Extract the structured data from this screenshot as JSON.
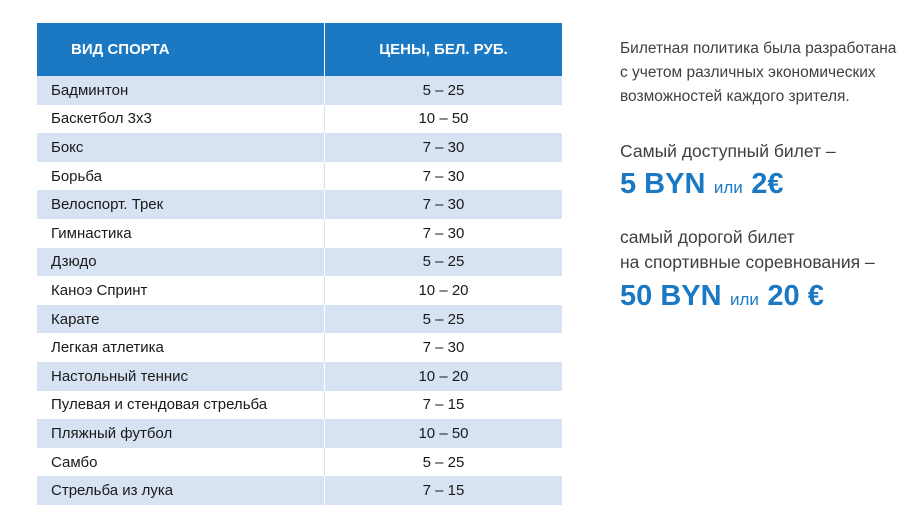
{
  "table": {
    "headers": {
      "sport": "ВИД СПОРТА",
      "price": "ЦЕНЫ, БЕЛ. РУБ."
    },
    "rows": [
      {
        "sport": "Бадминтон",
        "price": "5 – 25"
      },
      {
        "sport": "Баскетбол 3x3",
        "price": "10 – 50"
      },
      {
        "sport": "Бокс",
        "price": "7 – 30"
      },
      {
        "sport": "Борьба",
        "price": "7 – 30"
      },
      {
        "sport": "Велоспорт. Трек",
        "price": "7 – 30"
      },
      {
        "sport": "Гимнастика",
        "price": "7 – 30"
      },
      {
        "sport": "Дзюдо",
        "price": "5 – 25"
      },
      {
        "sport": "Каноэ Спринт",
        "price": "10 – 20"
      },
      {
        "sport": "Карате",
        "price": "5 – 25"
      },
      {
        "sport": "Легкая атлетика",
        "price": "7 – 30"
      },
      {
        "sport": "Настольный теннис",
        "price": "10 – 20"
      },
      {
        "sport": "Пулевая и стендовая стрельба",
        "price": "7 – 15"
      },
      {
        "sport": "Пляжный футбол",
        "price": "10 – 50"
      },
      {
        "sport": "Самбо",
        "price": "5 – 25"
      },
      {
        "sport": "Стрельба из лука",
        "price": "7 – 15"
      }
    ]
  },
  "info": {
    "policy": "Билетная политика была разработана\nс учетом различных экономических\nвозможностей каждого зрителя.",
    "cheapest_label": "Самый доступный билет –",
    "cheapest_byn": "5 BYN",
    "cheapest_or": "или",
    "cheapest_eur": "2€",
    "expensive_label": "самый дорогой билет\nна спортивные соревнования –",
    "expensive_byn": "50 BYN",
    "expensive_or": "или",
    "expensive_eur": "20 €"
  },
  "colors": {
    "accent": "#1b79c4",
    "stripe": "#d7e3f3",
    "text": "#3f3f3f"
  }
}
